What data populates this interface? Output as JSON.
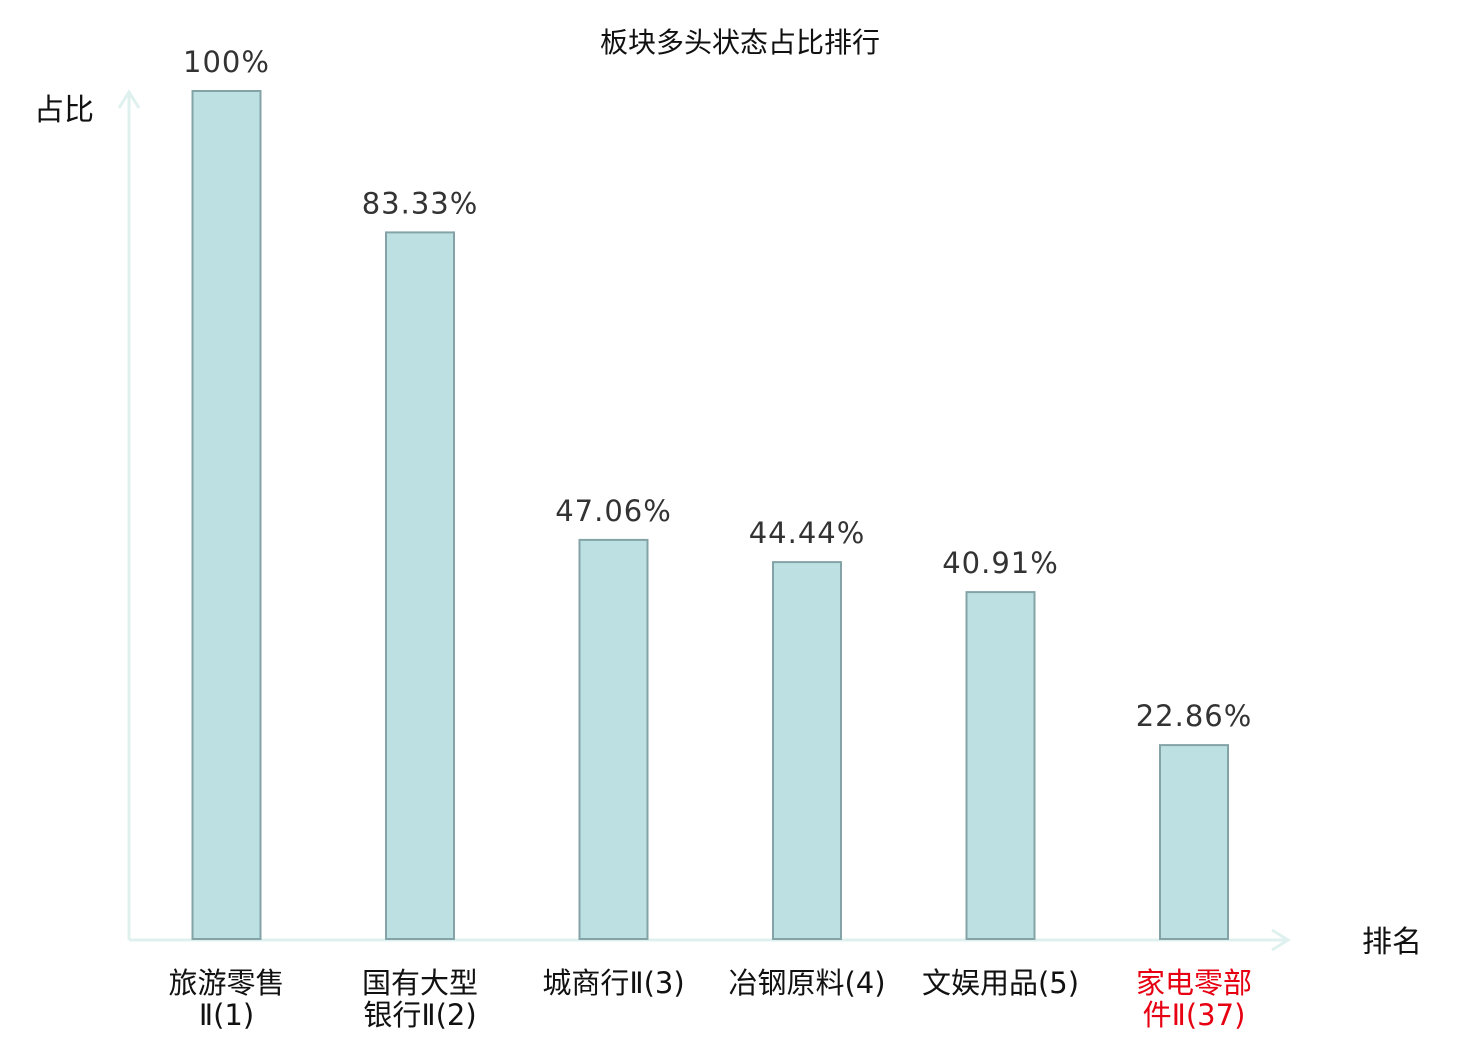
{
  "chart_data": {
    "type": "bar",
    "title": "板块多头状态占比排行",
    "xlabel": "排名",
    "ylabel": "占比",
    "ylim": [
      0,
      100
    ],
    "grid": false,
    "legend": "none",
    "categories": [
      {
        "name": "旅游零售Ⅱ",
        "rank": "(1)",
        "lines": [
          "旅游零售",
          "Ⅱ(1)"
        ],
        "highlight": false
      },
      {
        "name": "国有大型银行Ⅱ",
        "rank": "(2)",
        "lines": [
          "国有大型",
          "银行Ⅱ(2)"
        ],
        "highlight": false
      },
      {
        "name": "城商行Ⅱ",
        "rank": "(3)",
        "lines": [
          "城商行Ⅱ(3)"
        ],
        "highlight": false
      },
      {
        "name": "冶钢原料",
        "rank": "(4)",
        "lines": [
          "冶钢原料(4)"
        ],
        "highlight": false
      },
      {
        "name": "文娱用品",
        "rank": "(5)",
        "lines": [
          "文娱用品(5)"
        ],
        "highlight": false
      },
      {
        "name": "家电零部件Ⅱ",
        "rank": "(37)",
        "lines": [
          "家电零部",
          "件Ⅱ(37)"
        ],
        "highlight": true
      }
    ],
    "values": [
      100,
      83.33,
      47.06,
      44.44,
      40.91,
      22.86
    ],
    "value_labels": [
      "100%",
      "83.33%",
      "47.06%",
      "44.44%",
      "40.91%",
      "22.86%"
    ],
    "colors": {
      "bar_fill": "#bde0e3",
      "bar_stroke": "#84a3a6",
      "axis": "#dff1ef",
      "label_normal": "#111111",
      "label_highlight": "#e60012"
    }
  }
}
